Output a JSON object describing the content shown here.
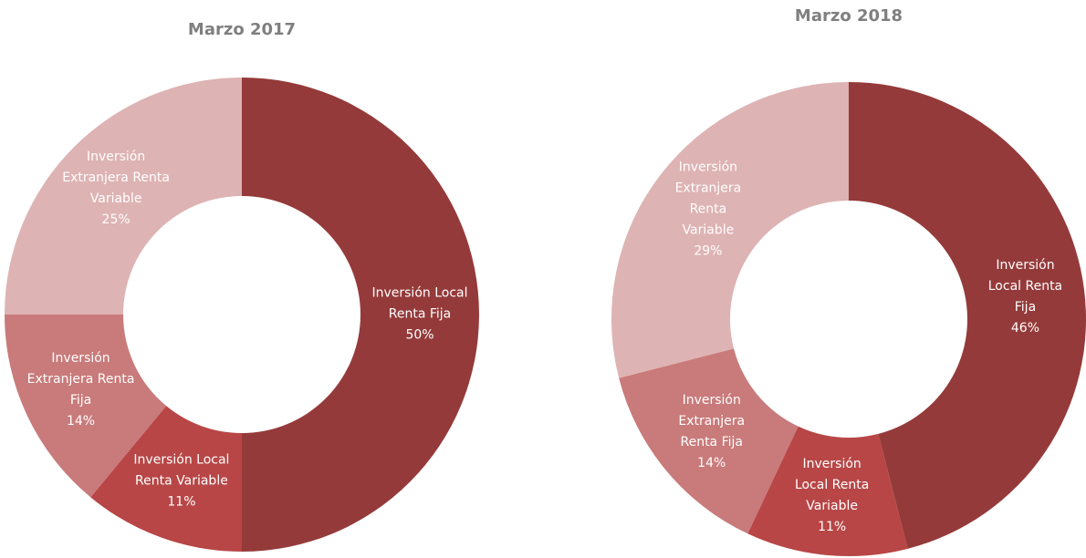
{
  "chart_data": [
    {
      "type": "donut",
      "title": "Marzo 2017",
      "categories": [
        "Inversión Local Renta Fija",
        "Inversión Local Renta Variable",
        "Inversión Extranjera Renta Fija",
        "Inversión Extranjera Renta Variable"
      ],
      "values": [
        50,
        11,
        14,
        25
      ],
      "value_labels": [
        "50%",
        "11%",
        "14%",
        "25%"
      ],
      "colors": [
        "#953a3a",
        "#b84646",
        "#c97a7a",
        "#deb3b3"
      ]
    },
    {
      "type": "donut",
      "title": "Marzo 2018",
      "categories": [
        "Inversión Local Renta Fija",
        "Inversión Local Renta Variable",
        "Inversión Extranjera Renta Fija",
        "Inversión Extranjera Renta Variable"
      ],
      "values": [
        46,
        11,
        14,
        29
      ],
      "value_labels": [
        "46%",
        "11%",
        "14%",
        "29%"
      ],
      "colors": [
        "#953a3a",
        "#b84646",
        "#c97a7a",
        "#deb3b3"
      ]
    }
  ]
}
